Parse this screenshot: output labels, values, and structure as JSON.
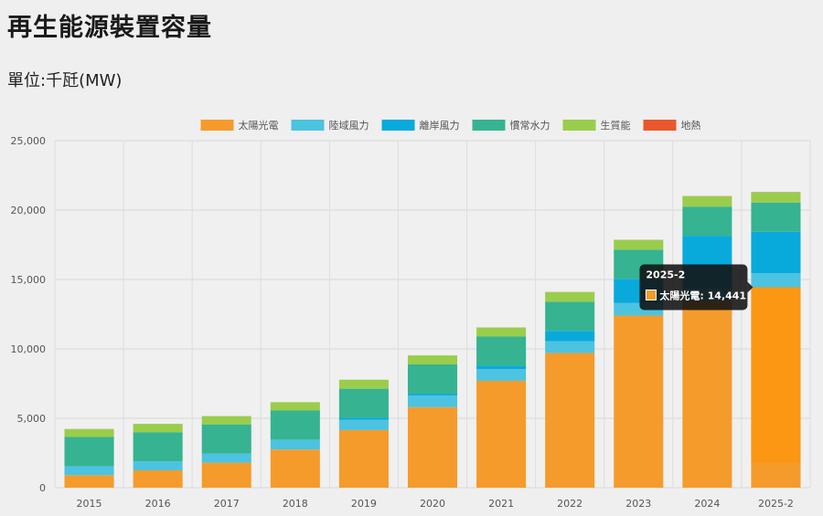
{
  "page": {
    "title": "再生能源裝置容量",
    "unit_label": "單位:千瓩(MW)"
  },
  "chart_data": {
    "type": "bar",
    "stacked": true,
    "categories": [
      "2015",
      "2016",
      "2017",
      "2018",
      "2019",
      "2020",
      "2021",
      "2022",
      "2023",
      "2024",
      "2025-2"
    ],
    "series": [
      {
        "name": "太陽光電",
        "color": "#f59b2b",
        "values": [
          900,
          1250,
          1800,
          2750,
          4150,
          5800,
          7700,
          9700,
          12400,
          13450,
          14441
        ]
      },
      {
        "name": "陸域風力",
        "color": "#4cc3e0",
        "values": [
          650,
          650,
          650,
          700,
          750,
          850,
          850,
          850,
          900,
          900,
          1000
        ]
      },
      {
        "name": "離岸風力",
        "color": "#08aadb",
        "values": [
          0,
          0,
          10,
          10,
          130,
          130,
          240,
          750,
          1750,
          3800,
          3000
        ]
      },
      {
        "name": "慣常水力",
        "color": "#36b391",
        "values": [
          2100,
          2100,
          2100,
          2100,
          2100,
          2100,
          2100,
          2100,
          2100,
          2100,
          2100
        ]
      },
      {
        "name": "生質能",
        "color": "#9acd4c",
        "values": [
          580,
          600,
          600,
          600,
          650,
          650,
          650,
          700,
          700,
          750,
          750
        ]
      },
      {
        "name": "地熱",
        "color": "#e8582c",
        "values": [
          0,
          0,
          0,
          0,
          0,
          0,
          3,
          3,
          10,
          10,
          10
        ]
      }
    ],
    "ylim": [
      0,
      25000
    ],
    "yticks": [
      0,
      5000,
      10000,
      15000,
      20000,
      25000
    ],
    "ytick_labels": [
      "0",
      "5,000",
      "10,000",
      "15,000",
      "20,000",
      "25,000"
    ],
    "grid": true,
    "legend_position": "top-center",
    "tooltip": {
      "category": "2025-2",
      "title": "2025-2",
      "text": "太陽光電: 14,441",
      "color": "#f59b2b"
    }
  }
}
